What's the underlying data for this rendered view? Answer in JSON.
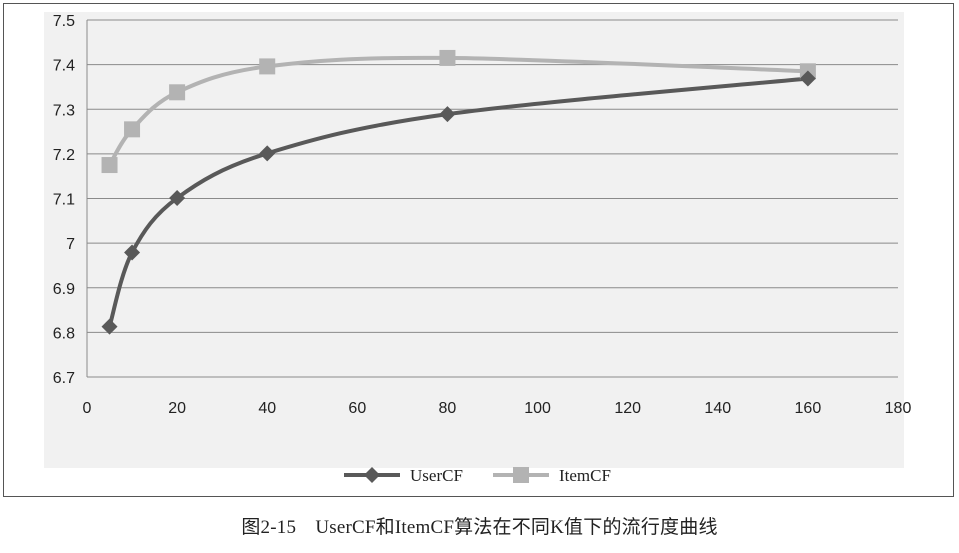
{
  "caption": "图2-15　UserCF和ItemCF算法在不同K值下的流行度曲线",
  "chart_data": {
    "type": "line",
    "title": "",
    "xlabel": "",
    "ylabel": "",
    "xlim": [
      0,
      180
    ],
    "ylim": [
      6.7,
      7.5
    ],
    "xticks": [
      0,
      20,
      40,
      60,
      80,
      100,
      120,
      140,
      160,
      180
    ],
    "yticks": [
      6.7,
      6.8,
      6.9,
      7,
      7.1,
      7.2,
      7.3,
      7.4,
      7.5
    ],
    "xtick_labels": [
      "0",
      "20",
      "40",
      "60",
      "80",
      "100",
      "120",
      "140",
      "160",
      "180"
    ],
    "ytick_labels": [
      "6.7",
      "6.8",
      "6.9",
      "7",
      "7.1",
      "7.2",
      "7.3",
      "7.4",
      "7.5"
    ],
    "grid": true,
    "legend_position": "bottom",
    "series": [
      {
        "name": "UserCF",
        "color": "#595959",
        "marker": "diamond",
        "x": [
          5,
          10,
          20,
          40,
          80,
          160
        ],
        "y": [
          6.813,
          6.979,
          7.101,
          7.201,
          7.289,
          7.369
        ]
      },
      {
        "name": "ItemCF",
        "color": "#b3b3b3",
        "marker": "square",
        "x": [
          5,
          10,
          20,
          40,
          80,
          160
        ],
        "y": [
          7.175,
          7.255,
          7.338,
          7.396,
          7.415,
          7.385
        ]
      }
    ]
  }
}
